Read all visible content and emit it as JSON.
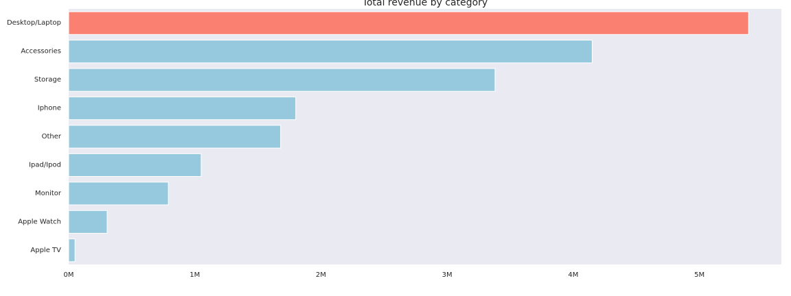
{
  "chart_data": {
    "type": "bar",
    "orientation": "horizontal",
    "title": "Total revenue by category",
    "xlabel": "",
    "ylabel": "",
    "categories": [
      "Desktop/Laptop",
      "Accessories",
      "Storage",
      "Iphone",
      "Other",
      "Ipad/Ipod",
      "Monitor",
      "Apple Watch",
      "Apple TV"
    ],
    "values": [
      5390000,
      4150000,
      3380000,
      1800000,
      1680000,
      1050000,
      790000,
      305000,
      50000
    ],
    "xlim": [
      0,
      5650000
    ],
    "xticks": [
      0,
      1000000,
      2000000,
      3000000,
      4000000,
      5000000
    ],
    "xtick_labels": [
      "0M",
      "1M",
      "2M",
      "3M",
      "4M",
      "5M"
    ],
    "highlight_index": 0,
    "colors": {
      "highlight": "#fa8072",
      "default": "#96c8de",
      "background": "#eaeaf2",
      "bar_edge": "#ffffff"
    },
    "grid": false,
    "legend": "none"
  }
}
